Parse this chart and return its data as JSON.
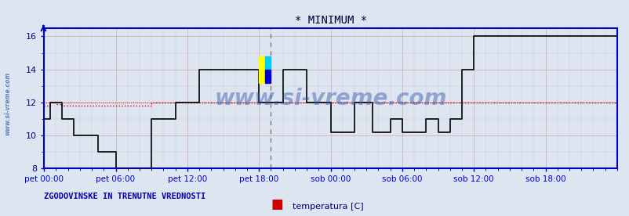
{
  "title": "* MINIMUM *",
  "watermark": "www.si-vreme.com",
  "xlabel_bottom": "ZGODOVINSKE IN TRENUTNE VREDNOSTI",
  "legend_label": "temperatura [C]",
  "legend_color": "#cc0000",
  "bg_color": "#dde5f0",
  "plot_bg_color": "#dde5f0",
  "axis_color": "#0000cc",
  "grid_color_major": "#cc9999",
  "grid_color_minor": "#ddbbbb",
  "dashed_line_color": "#cc0000",
  "vertical_line_color": "#666666",
  "ylim": [
    8,
    16.5
  ],
  "yticks": [
    8,
    10,
    12,
    14,
    16
  ],
  "xtick_labels": [
    "pet 00:00",
    "pet 06:00",
    "pet 12:00",
    "pet 18:00",
    "sob 00:00",
    "sob 06:00",
    "sob 12:00",
    "sob 18:00"
  ],
  "xtick_positions": [
    0,
    72,
    144,
    216,
    288,
    360,
    432,
    504
  ],
  "total_points": 576,
  "line_color_red": "#cc0000",
  "line_color_black": "#000000",
  "line_width": 1.0,
  "dashed_y": 12.0,
  "vertical_x": 228,
  "title_color": "#000033",
  "title_fontsize": 10,
  "tick_label_color": "#000077",
  "watermark_color": "#3355aa",
  "watermark_fontsize": 20,
  "red_step_data": [
    [
      0,
      11.8
    ],
    [
      6,
      12.0
    ],
    [
      12,
      11.9
    ],
    [
      18,
      11.8
    ],
    [
      72,
      11.8
    ],
    [
      108,
      12.0
    ],
    [
      156,
      12.0
    ],
    [
      216,
      12.0
    ],
    [
      240,
      12.0
    ],
    [
      264,
      12.0
    ],
    [
      288,
      12.0
    ],
    [
      312,
      12.0
    ],
    [
      330,
      12.0
    ],
    [
      360,
      12.0
    ],
    [
      408,
      12.0
    ],
    [
      420,
      12.0
    ],
    [
      432,
      12.0
    ],
    [
      576,
      12.0
    ]
  ],
  "black_step_data": [
    [
      0,
      11.0
    ],
    [
      6,
      12.0
    ],
    [
      18,
      11.0
    ],
    [
      30,
      10.0
    ],
    [
      54,
      9.0
    ],
    [
      72,
      8.0
    ],
    [
      108,
      11.0
    ],
    [
      132,
      12.0
    ],
    [
      156,
      14.0
    ],
    [
      216,
      12.0
    ],
    [
      240,
      14.0
    ],
    [
      264,
      12.0
    ],
    [
      288,
      10.2
    ],
    [
      312,
      12.0
    ],
    [
      330,
      10.2
    ],
    [
      348,
      11.0
    ],
    [
      360,
      10.2
    ],
    [
      384,
      11.0
    ],
    [
      396,
      10.2
    ],
    [
      408,
      11.0
    ],
    [
      420,
      14.0
    ],
    [
      432,
      16.0
    ],
    [
      504,
      16.0
    ],
    [
      576,
      16.0
    ]
  ]
}
